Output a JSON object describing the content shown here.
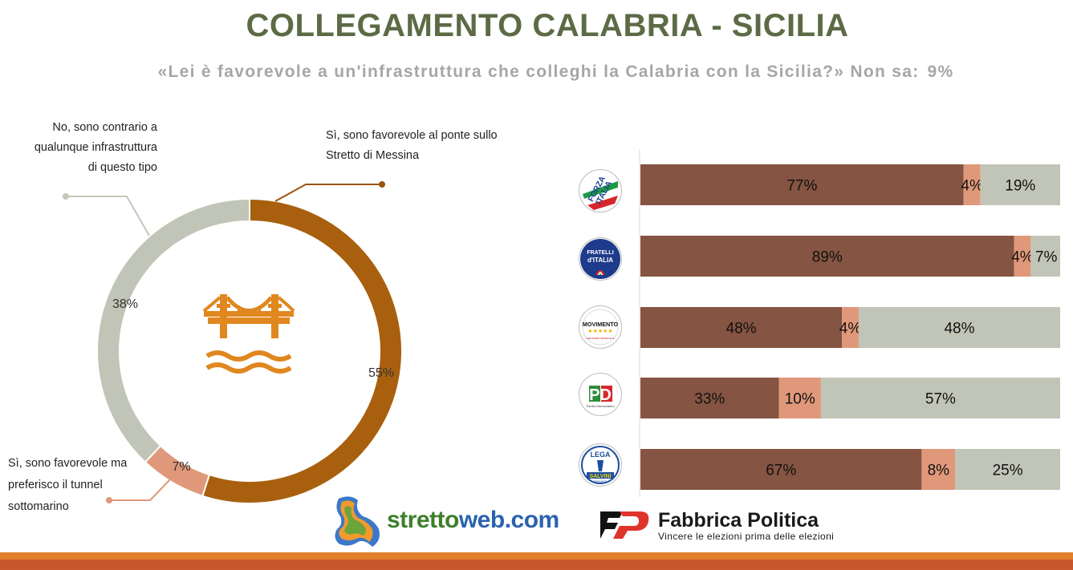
{
  "header": {
    "title": "COLLEGAMENTO CALABRIA - SICILIA",
    "question": "«Lei è favorevole a un'infrastruttura che colleghi la Calabria con la Sicilia?»",
    "nonsa_label": "Non sa:",
    "nonsa_value": "9%"
  },
  "colors": {
    "bridge": "#a8600f",
    "tunnel": "#e0987a",
    "contrario": "#c1c5b7",
    "bar_bridge": "#855442",
    "title": "#5c6b45",
    "stripe_orange": "#e17f2a",
    "stripe_dark": "#c6582c"
  },
  "chart_data": [
    {
      "type": "pie",
      "donut": true,
      "icon": "bridge-icon",
      "categories": [
        "Sì, sono favorevole al ponte sullo Stretto di Messina",
        "Sì, sono favorevole ma preferisco il tunnel sottomarino",
        "No, sono contrario a qualunque infrastruttura di questo tipo"
      ],
      "values": [
        55,
        7,
        38
      ],
      "labels": [
        "55%",
        "7%",
        "38%"
      ],
      "callouts": {
        "bridge": [
          "Sì, sono favorevole al ponte sullo",
          "Stretto di Messina"
        ],
        "tunnel": [
          "Sì, sono favorevole ma",
          "preferisco il tunnel",
          "sottomarino"
        ],
        "contrario": [
          "No, sono contrario a",
          "qualunque infrastruttura",
          "di questo tipo"
        ]
      }
    },
    {
      "type": "bar",
      "stacked": true,
      "orientation": "horizontal",
      "categories": [
        "FORZA ITALIA",
        "FRATELLI D'ITALIA",
        "MOVIMENTO 5 STELLE",
        "PD",
        "LEGA"
      ],
      "series": [
        {
          "values": [
            77,
            89,
            48,
            33,
            67
          ],
          "labels": [
            "77%",
            "89%",
            "48%",
            "33%",
            "67%"
          ]
        },
        {
          "values": [
            4,
            4,
            4,
            10,
            8
          ],
          "labels": [
            "4%",
            "4%",
            "4%",
            "10%",
            "8%"
          ]
        },
        {
          "values": [
            19,
            7,
            48,
            57,
            25
          ],
          "labels": [
            "19%",
            "7%",
            "48%",
            "57%",
            "25%"
          ]
        }
      ],
      "xlim": [
        0,
        100
      ]
    }
  ],
  "logos": {
    "fi": [
      "FORZA",
      "ITALIA"
    ],
    "fdi": [
      "FRATELLI",
      "d'ITALIA"
    ],
    "m5s": [
      "MOVIMENTO",
      "★★★★★",
      "ILBLOGDELLESTELLE.IT"
    ],
    "pd": [
      "PD",
      "Partito Democratico"
    ],
    "lega": [
      "LEGA",
      "SALVINI",
      "PREMIER"
    ]
  },
  "branding": {
    "strettoweb_a": "stretto",
    "strettoweb_b": "web.com",
    "fp_name": "Fabbrica Politica",
    "fp_tagline": "Vincere le elezioni prima delle elezioni"
  }
}
